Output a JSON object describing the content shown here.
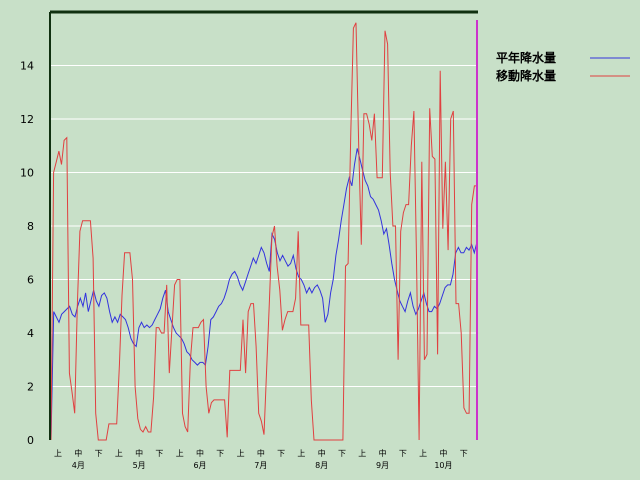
{
  "chart_data": {
    "type": "line",
    "ylim": [
      0,
      16
    ],
    "yticks": [
      "0",
      "2",
      "4",
      "6",
      "8",
      "10",
      "12",
      "14"
    ],
    "grid": "horizontal",
    "legend_position": "top-right",
    "colors": {
      "background": "#c8e0c8",
      "grid": "#ffffff",
      "series_1": "#3333dd",
      "series_2": "#e04040",
      "marker": "#cc33cc"
    },
    "period_ticks": [
      "上",
      "中",
      "下"
    ],
    "months": [
      "4月",
      "5月",
      "6月",
      "7月",
      "8月",
      "9月",
      "10月"
    ],
    "series": [
      {
        "name": "平年降水量",
        "values": [
          0,
          4.8,
          4.6,
          4.4,
          4.7,
          4.8,
          4.9,
          5.0,
          4.7,
          4.6,
          5.0,
          5.3,
          5.0,
          5.5,
          4.8,
          5.2,
          5.6,
          5.2,
          5.0,
          5.4,
          5.5,
          5.3,
          4.8,
          4.4,
          4.6,
          4.4,
          4.7,
          4.6,
          4.5,
          4.2,
          3.8,
          3.6,
          3.5,
          4.2,
          4.4,
          4.2,
          4.3,
          4.2,
          4.3,
          4.5,
          4.7,
          4.9,
          5.3,
          5.6,
          4.8,
          4.5,
          4.2,
          4.0,
          3.9,
          3.8,
          3.6,
          3.3,
          3.2,
          3.0,
          2.9,
          2.8,
          2.9,
          2.9,
          2.8,
          3.5,
          4.5,
          4.6,
          4.8,
          5.0,
          5.1,
          5.3,
          5.6,
          6.0,
          6.2,
          6.3,
          6.1,
          5.8,
          5.6,
          5.9,
          6.2,
          6.5,
          6.8,
          6.6,
          6.9,
          7.2,
          7.0,
          6.6,
          6.3,
          7.7,
          7.5,
          7.0,
          6.7,
          6.9,
          6.7,
          6.5,
          6.6,
          6.9,
          6.4,
          6.1,
          6.0,
          5.8,
          5.5,
          5.7,
          5.5,
          5.7,
          5.8,
          5.6,
          5.3,
          4.4,
          4.7,
          5.5,
          6.0,
          6.9,
          7.5,
          8.2,
          8.8,
          9.4,
          9.8,
          9.5,
          10.3,
          10.9,
          10.5,
          10.1,
          9.7,
          9.5,
          9.1,
          9.0,
          8.8,
          8.6,
          8.2,
          7.7,
          7.9,
          7.3,
          6.6,
          6.0,
          5.6,
          5.2,
          5.0,
          4.8,
          5.2,
          5.5,
          5.0,
          4.7,
          4.9,
          5.2,
          5.5,
          5.1,
          4.8,
          4.8,
          5.0,
          4.9,
          5.1,
          5.4,
          5.7,
          5.8,
          5.8,
          6.2,
          7.0,
          7.2,
          7.0,
          7.0,
          7.2,
          7.1,
          7.3,
          7.0,
          7.4
        ]
      },
      {
        "name": "移動降水量",
        "values": [
          0,
          10.0,
          10.4,
          10.8,
          10.3,
          11.2,
          11.3,
          2.5,
          1.8,
          1.0,
          5.0,
          7.8,
          8.2,
          8.2,
          8.2,
          8.2,
          6.8,
          1.0,
          0,
          0,
          0,
          0,
          0.6,
          0.6,
          0.6,
          0.6,
          2.8,
          5.4,
          7.0,
          7.0,
          7.0,
          6.0,
          2.0,
          0.8,
          0.4,
          0.3,
          0.5,
          0.3,
          0.3,
          1.6,
          4.2,
          4.2,
          4.0,
          4.0,
          5.8,
          2.5,
          4.2,
          5.8,
          6.0,
          6.0,
          1.0,
          0.5,
          0.3,
          3.0,
          4.2,
          4.2,
          4.2,
          4.4,
          4.5,
          2.0,
          1.0,
          1.4,
          1.5,
          1.5,
          1.5,
          1.5,
          1.5,
          0.1,
          2.6,
          2.6,
          2.6,
          2.6,
          2.6,
          4.5,
          2.5,
          4.8,
          5.1,
          5.1,
          3.5,
          1.0,
          0.7,
          0.2,
          2.6,
          5.1,
          7.6,
          8.0,
          6.5,
          5.6,
          4.1,
          4.5,
          4.8,
          4.8,
          4.8,
          5.3,
          7.8,
          4.3,
          4.3,
          4.3,
          4.3,
          1.5,
          0,
          0,
          0,
          0,
          0,
          0,
          0,
          0,
          0,
          0,
          0,
          0,
          6.5,
          6.6,
          11.5,
          15.4,
          15.6,
          11.0,
          7.3,
          12.2,
          12.2,
          11.8,
          11.2,
          12.2,
          9.8,
          9.8,
          9.8,
          15.3,
          14.8,
          10.0,
          8.0,
          8.0,
          3.0,
          7.8,
          8.5,
          8.8,
          8.8,
          11.0,
          12.3,
          6.8,
          0,
          10.4,
          3.0,
          3.2,
          12.4,
          10.6,
          10.5,
          3.2,
          13.8,
          7.9,
          10.4,
          7.1,
          12.0,
          12.3,
          5.1,
          5.1,
          4.0,
          1.2,
          1.0,
          1.0,
          8.8,
          9.5,
          9.5
        ]
      }
    ]
  }
}
